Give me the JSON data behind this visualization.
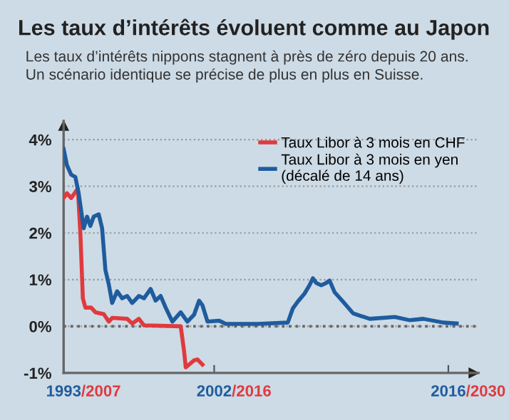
{
  "chart_data": {
    "type": "line",
    "title": "Les taux d’intérêts évoluent comme au Japon",
    "subtitle": "Les taux d’intérêts nippons stagnent à près de zéro depuis 20 ans.\nUn scénario identique se précise de plus en plus en Suisse.",
    "series": [
      {
        "name": "Taux Libor à 3 mois en CHF",
        "color": "#e03a3e",
        "x": [
          1993.0,
          1993.2,
          1993.45,
          1993.65,
          1993.85,
          1994.0,
          1994.15,
          1994.3,
          1994.65,
          1994.9,
          1995.4,
          1995.55,
          1995.7,
          1995.9,
          1996.8,
          1997.1,
          1997.5,
          1997.8,
          2000.0,
          2000.2,
          2000.3,
          2000.8,
          2001.0,
          2001.3
        ],
        "values": [
          2.75,
          2.85,
          2.75,
          2.85,
          2.95,
          2.0,
          0.6,
          0.4,
          0.4,
          0.3,
          0.26,
          0.18,
          0.1,
          0.18,
          0.16,
          0.06,
          0.16,
          0.02,
          0.0,
          -0.53,
          -0.88,
          -0.73,
          -0.71,
          -0.82
        ]
      },
      {
        "name": "Taux Libor à 3 mois en yen\n(décalé de 14 ans)",
        "color": "#1f5c9e",
        "x": [
          1993.0,
          1993.2,
          1993.45,
          1993.7,
          1993.9,
          1994.1,
          1994.2,
          1994.4,
          1994.6,
          1994.8,
          1995.1,
          1995.3,
          1995.5,
          1995.7,
          1995.9,
          1996.2,
          1996.5,
          1996.8,
          1997.1,
          1997.5,
          1997.8,
          1998.2,
          1998.5,
          1998.8,
          1999.1,
          1999.5,
          2000.0,
          2000.4,
          2000.8,
          2001.1,
          2001.3,
          2001.6,
          2002.3,
          2002.7,
          2004.6,
          2006.4,
          2006.7,
          2007.0,
          2007.4,
          2007.7,
          2007.9,
          2008.1,
          2008.4,
          2008.7,
          2008.9,
          2009.2,
          2009.7,
          2010.3,
          2010.7,
          2011.3,
          2012.8,
          2013.7,
          2014.5,
          2015.7,
          2016.5
        ],
        "values": [
          3.8,
          3.45,
          3.25,
          3.2,
          2.85,
          2.35,
          2.1,
          2.35,
          2.15,
          2.35,
          2.4,
          2.1,
          1.2,
          0.9,
          0.5,
          0.75,
          0.6,
          0.65,
          0.5,
          0.65,
          0.6,
          0.8,
          0.55,
          0.65,
          0.4,
          0.1,
          0.3,
          0.1,
          0.25,
          0.55,
          0.45,
          0.1,
          0.12,
          0.05,
          0.05,
          0.08,
          0.38,
          0.53,
          0.7,
          0.88,
          1.03,
          0.93,
          0.88,
          0.93,
          0.98,
          0.73,
          0.53,
          0.28,
          0.23,
          0.16,
          0.2,
          0.13,
          0.16,
          0.08,
          0.06
        ]
      }
    ],
    "xlim": [
      1993,
      2017.8
    ],
    "xticks": [
      1993,
      2002,
      2016
    ],
    "annotations": [
      "/2007",
      "/2016",
      "/2030"
    ],
    "ylim": [
      -1,
      4.4
    ],
    "yticks": [
      {
        "value": -1,
        "label": "-1%"
      },
      {
        "value": 0,
        "label": "0%"
      },
      {
        "value": 1,
        "label": "1%"
      },
      {
        "value": 2,
        "label": "2%"
      },
      {
        "value": 3,
        "label": "3%"
      },
      {
        "value": 4,
        "label": "4%"
      }
    ],
    "grid": "y",
    "legend": "top right",
    "marker": "none",
    "line_style": "solid",
    "ref_lines": [
      {
        "axis": "y",
        "value": 0,
        "label": null,
        "color": "#666666",
        "line_style": "dotted"
      }
    ]
  }
}
